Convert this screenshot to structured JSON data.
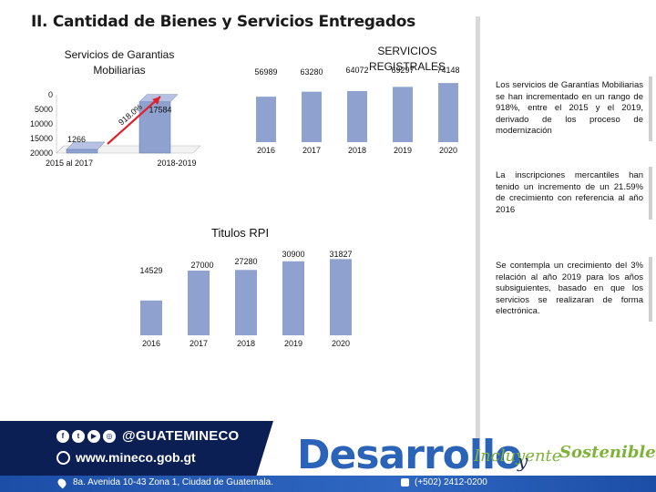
{
  "page_title": "II. Cantidad de Bienes y Servicios Entregados",
  "colors": {
    "bar": "#8ea1cf",
    "bar_edge": "#6d7fb0",
    "arrow": "#e0202a",
    "footer_dark": "#0c1f55",
    "brand_blue": "#2a63b7",
    "brand_green": "#7fb23a"
  },
  "garantias": {
    "title_line1": "Servicios de Garantias",
    "title_line2": "Mobiliarias",
    "growth_label": "918.0%"
  },
  "registrales": {
    "title": "SERVICIOS REGISTRALES"
  },
  "rpi": {
    "title": "Titulos RPI"
  },
  "notes": [
    "Los servicios de Garantías Mobiliarias se han incrementado en un rango de 918%, entre el 2015 y el 2019, derivado de los proceso de modernización",
    "La inscripciones mercantiles han tenido un incremento de un 21.59% de crecimiento con referencia al año 2016",
    "Se contempla un crecimiento del 3% relación al año 2019 para los años subsiguientes, basado en que los servicios se realizaran de forma electrónica."
  ],
  "footer": {
    "social_icons": [
      "facebook-icon",
      "twitter-icon",
      "youtube-icon",
      "instagram-icon"
    ],
    "handle": "@GUATEMINECO",
    "website": "www.mineco.gob.gt",
    "address": "8a. Avenida 10-43 Zona 1, Ciudad de Guatemala.",
    "phone": "(+502) 2412-0200",
    "brand": "Desarrollo",
    "brand_incluyente": "Incluyente",
    "brand_y": "y",
    "brand_sostenible": "Sostenible"
  },
  "chart_data": [
    {
      "type": "bar",
      "title": "Servicios de Garantias Mobiliarias",
      "categories": [
        "2015 al 2017",
        "2018-2019"
      ],
      "values": [
        1266,
        17584
      ],
      "value_labels": [
        "1266",
        "17584"
      ],
      "y_ticks": [
        "20000",
        "15000",
        "10000",
        "5000",
        "0"
      ],
      "ylim": [
        0,
        20000
      ],
      "annotation": "918.0%"
    },
    {
      "type": "bar",
      "title": "SERVICIOS REGISTRALES",
      "categories": [
        "2016",
        "2017",
        "2018",
        "2019",
        "2020"
      ],
      "values": [
        56989,
        63280,
        64072,
        69297,
        74148
      ],
      "ylim": [
        0,
        80000
      ]
    },
    {
      "type": "bar",
      "title": "Titulos RPI",
      "categories": [
        "2016",
        "2017",
        "2018",
        "2019",
        "2020"
      ],
      "values": [
        14529,
        27000,
        27280,
        30900,
        31827
      ],
      "ylim": [
        0,
        35000
      ]
    }
  ]
}
